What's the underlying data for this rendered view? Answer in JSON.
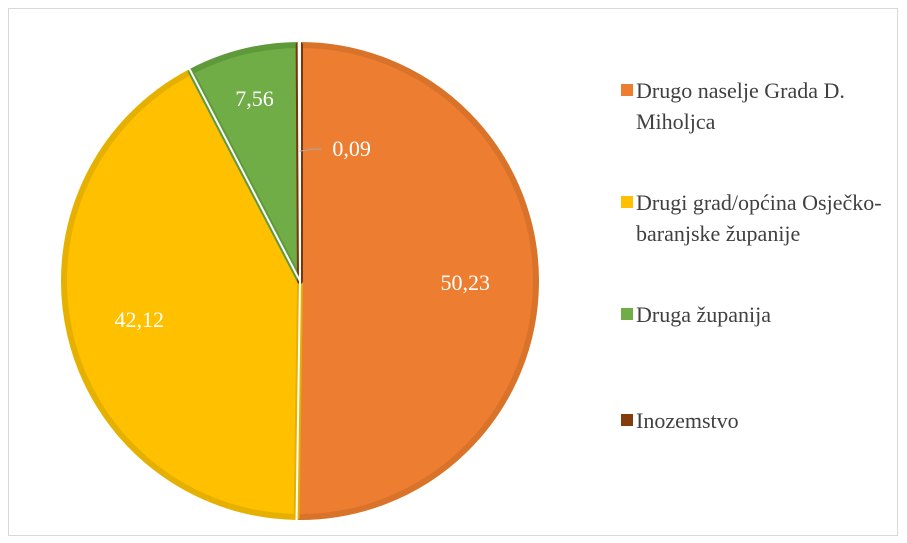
{
  "chart_data": {
    "type": "pie",
    "title": "",
    "categories": [
      "Drugo naselje Grada D. Miholjca",
      "Drugi grad/općina Osječko-baranjske županije",
      "Druga županija",
      "Inozemstvo"
    ],
    "values": [
      50.23,
      42.12,
      7.56,
      0.09
    ],
    "labels": [
      "50,23",
      "42,12",
      "7,56",
      "0,09"
    ],
    "colors": [
      "#ed7d31",
      "#ffc000",
      "#70ad47",
      "#843c0c"
    ],
    "border_colors": [
      "#d87329",
      "#e6b000",
      "#5f9a3a",
      "#7a3508"
    ],
    "legend_position": "right",
    "start_angle_deg": 0,
    "direction": "clockwise"
  },
  "legend": [
    {
      "label": "Drugo naselje Grada D. Miholjca",
      "color": "#ed7d31"
    },
    {
      "label": "Drugi grad/općina Osječko-baranjske županije",
      "color": "#ffc000"
    },
    {
      "label": "Druga županija",
      "color": "#70ad47"
    },
    {
      "label": "Inozemstvo",
      "color": "#843c0c"
    }
  ]
}
